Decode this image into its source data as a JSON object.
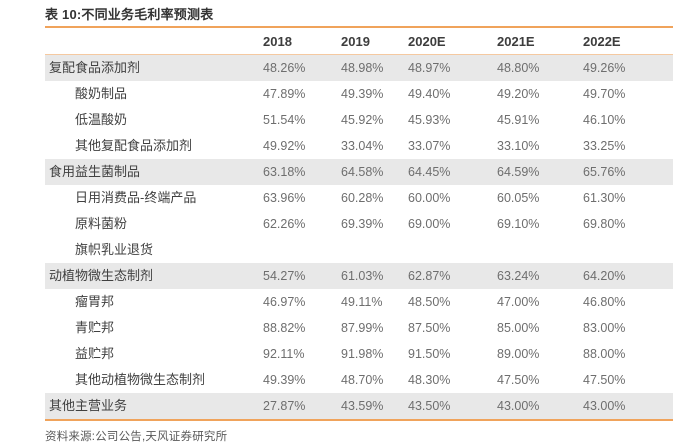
{
  "title": "表 10:不同业务毛利率预测表",
  "source_note": "资料来源:公司公告,天风证券研究所",
  "colors": {
    "accent_orange": "#F0A35B",
    "header_divider_orange": "#F5C9A0",
    "highlight_row_gray": "#E8E8E8",
    "label_text": "#404040",
    "value_text": "#6e6e6e"
  },
  "table": {
    "columns": [
      "",
      "2018",
      "2019",
      "2020E",
      "2021E",
      "2022E"
    ],
    "rows": [
      {
        "label": "复配食品添加剂",
        "indent": false,
        "highlight": true,
        "values": [
          "48.26%",
          "48.98%",
          "48.97%",
          "48.80%",
          "49.26%"
        ]
      },
      {
        "label": "酸奶制品",
        "indent": true,
        "highlight": false,
        "values": [
          "47.89%",
          "49.39%",
          "49.40%",
          "49.20%",
          "49.70%"
        ]
      },
      {
        "label": "低温酸奶",
        "indent": true,
        "highlight": false,
        "values": [
          "51.54%",
          "45.92%",
          "45.93%",
          "45.91%",
          "46.10%"
        ]
      },
      {
        "label": "其他复配食品添加剂",
        "indent": true,
        "highlight": false,
        "values": [
          "49.92%",
          "33.04%",
          "33.07%",
          "33.10%",
          "33.25%"
        ]
      },
      {
        "label": "食用益生菌制品",
        "indent": false,
        "highlight": true,
        "values": [
          "63.18%",
          "64.58%",
          "64.45%",
          "64.59%",
          "65.76%"
        ]
      },
      {
        "label": "日用消费品-终端产品",
        "indent": true,
        "highlight": false,
        "values": [
          "63.96%",
          "60.28%",
          "60.00%",
          "60.05%",
          "61.30%"
        ]
      },
      {
        "label": "原料菌粉",
        "indent": true,
        "highlight": false,
        "values": [
          "62.26%",
          "69.39%",
          "69.00%",
          "69.10%",
          "69.80%"
        ]
      },
      {
        "label": "旗帜乳业退货",
        "indent": true,
        "highlight": false,
        "values": [
          "",
          "",
          "",
          "",
          ""
        ]
      },
      {
        "label": "动植物微生态制剂",
        "indent": false,
        "highlight": true,
        "values": [
          "54.27%",
          "61.03%",
          "62.87%",
          "63.24%",
          "64.20%"
        ]
      },
      {
        "label": "瘤胃邦",
        "indent": true,
        "highlight": false,
        "values": [
          "46.97%",
          "49.11%",
          "48.50%",
          "47.00%",
          "46.80%"
        ]
      },
      {
        "label": "青贮邦",
        "indent": true,
        "highlight": false,
        "values": [
          "88.82%",
          "87.99%",
          "87.50%",
          "85.00%",
          "83.00%"
        ]
      },
      {
        "label": "益贮邦",
        "indent": true,
        "highlight": false,
        "values": [
          "92.11%",
          "91.98%",
          "91.50%",
          "89.00%",
          "88.00%"
        ]
      },
      {
        "label": "其他动植物微生态制剂",
        "indent": true,
        "highlight": false,
        "values": [
          "49.39%",
          "48.70%",
          "48.30%",
          "47.50%",
          "47.50%"
        ]
      },
      {
        "label": "其他主营业务",
        "indent": false,
        "highlight": true,
        "values": [
          "27.87%",
          "43.59%",
          "43.50%",
          "43.00%",
          "43.00%"
        ]
      }
    ]
  }
}
